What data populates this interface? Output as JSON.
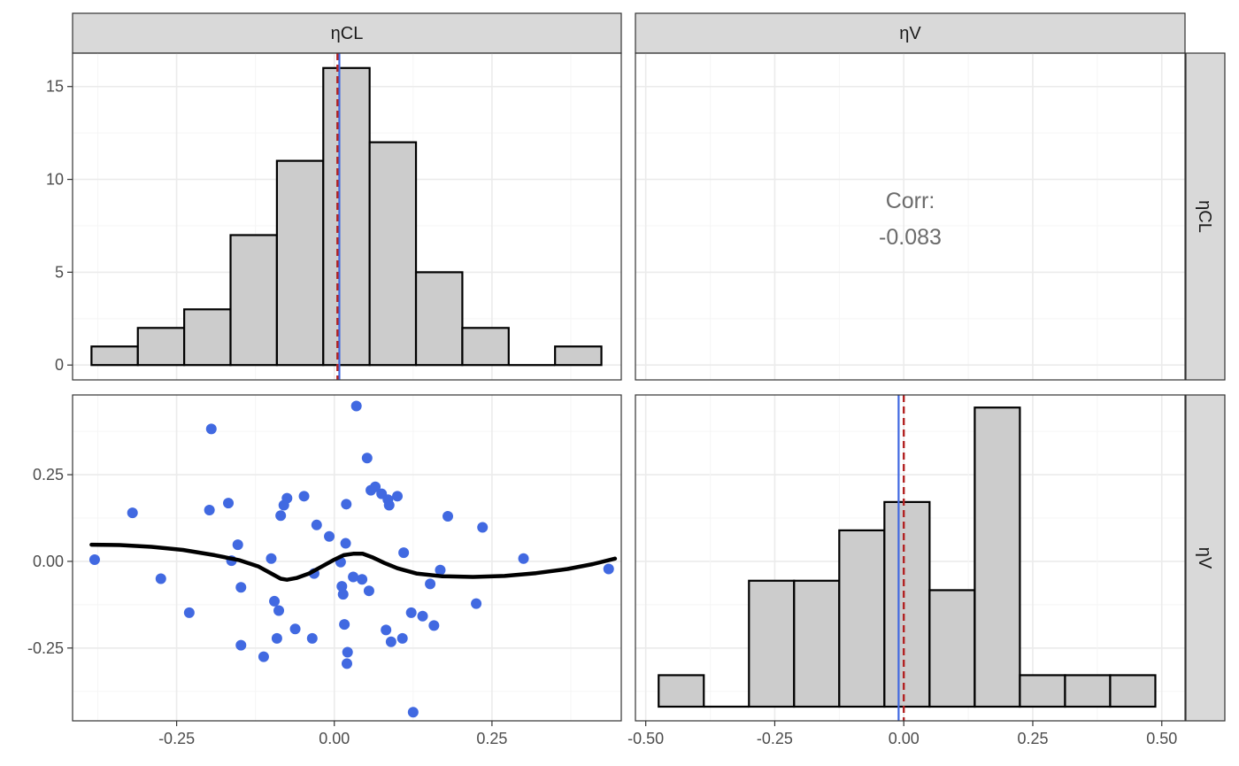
{
  "colors": {
    "bar_fill": "#cccccc",
    "bar_stroke": "#000000",
    "point": "#4169e1",
    "mean_line": "#4169e1",
    "median_line": "#b22222",
    "smooth": "#000000",
    "strip_fill": "#d9d9d9",
    "grid_major": "#ebebeb",
    "grid_minor": "#f5f5f5",
    "panel_border": "#333333",
    "corr_text": "#6b6b6b"
  },
  "chart_data": {
    "type": "pairs",
    "variables": [
      "ηCL",
      "ηV"
    ],
    "strips": {
      "columns": [
        "ηCL",
        "ηV"
      ],
      "rows": [
        "ηCL",
        "ηV"
      ]
    },
    "x_ticks": {
      "col1": [
        {
          "v": -0.25,
          "label": "-0.25"
        },
        {
          "v": 0.0,
          "label": "0.00"
        },
        {
          "v": 0.25,
          "label": "0.25"
        }
      ],
      "col2": [
        {
          "v": -0.5,
          "label": "-0.50"
        },
        {
          "v": -0.25,
          "label": "-0.25"
        },
        {
          "v": 0.0,
          "label": "0.00"
        },
        {
          "v": 0.25,
          "label": "0.25"
        },
        {
          "v": 0.5,
          "label": "0.50"
        }
      ]
    },
    "y_ticks": {
      "row1": [
        {
          "v": 0,
          "label": "0"
        },
        {
          "v": 5,
          "label": "5"
        },
        {
          "v": 10,
          "label": "10"
        },
        {
          "v": 15,
          "label": "15"
        }
      ],
      "row2": [
        {
          "v": -0.25,
          "label": "-0.25"
        },
        {
          "v": 0.0,
          "label": "0.00"
        },
        {
          "v": 0.25,
          "label": "0.25"
        }
      ]
    },
    "hist_etaCL": {
      "type": "bar",
      "xlim": [
        -0.415,
        0.455
      ],
      "ylim": [
        -0.8,
        16.8
      ],
      "bin_edges": [
        -0.385,
        -0.3115,
        -0.238,
        -0.1645,
        -0.091,
        -0.0175,
        0.056,
        0.1295,
        0.203,
        0.2765,
        0.35,
        0.4235
      ],
      "counts": [
        1,
        2,
        3,
        7,
        11,
        16,
        12,
        5,
        2,
        0,
        1
      ],
      "mean": 0.008,
      "median": 0.005
    },
    "corr": {
      "label": "Corr:",
      "value": "-0.083"
    },
    "scatter": {
      "type": "scatter",
      "xlim": [
        -0.415,
        0.455
      ],
      "ylim": [
        -0.46,
        0.48
      ],
      "points": [
        [
          -0.38,
          0.005
        ],
        [
          -0.32,
          0.14
        ],
        [
          -0.275,
          -0.05
        ],
        [
          -0.23,
          -0.148
        ],
        [
          -0.198,
          0.148
        ],
        [
          -0.195,
          0.382
        ],
        [
          -0.168,
          0.168
        ],
        [
          -0.163,
          0.002
        ],
        [
          -0.153,
          0.048
        ],
        [
          -0.148,
          -0.242
        ],
        [
          -0.148,
          -0.075
        ],
        [
          -0.112,
          -0.275
        ],
        [
          -0.1,
          0.008
        ],
        [
          -0.095,
          -0.115
        ],
        [
          -0.091,
          -0.222
        ],
        [
          -0.088,
          -0.142
        ],
        [
          -0.085,
          0.132
        ],
        [
          -0.08,
          0.162
        ],
        [
          -0.075,
          0.182
        ],
        [
          -0.062,
          -0.195
        ],
        [
          -0.048,
          0.188
        ],
        [
          -0.035,
          -0.222
        ],
        [
          -0.032,
          -0.035
        ],
        [
          -0.028,
          0.105
        ],
        [
          -0.008,
          0.072
        ],
        [
          0.01,
          -0.002
        ],
        [
          0.012,
          -0.072
        ],
        [
          0.014,
          -0.095
        ],
        [
          0.016,
          -0.182
        ],
        [
          0.018,
          0.052
        ],
        [
          0.019,
          0.165
        ],
        [
          0.02,
          -0.295
        ],
        [
          0.021,
          -0.262
        ],
        [
          0.03,
          -0.045
        ],
        [
          0.035,
          0.448
        ],
        [
          0.044,
          -0.052
        ],
        [
          0.052,
          0.298
        ],
        [
          0.055,
          -0.085
        ],
        [
          0.058,
          0.205
        ],
        [
          0.065,
          0.215
        ],
        [
          0.075,
          0.195
        ],
        [
          0.082,
          -0.198
        ],
        [
          0.085,
          0.178
        ],
        [
          0.087,
          0.162
        ],
        [
          0.09,
          -0.232
        ],
        [
          0.1,
          0.188
        ],
        [
          0.108,
          -0.222
        ],
        [
          0.11,
          0.025
        ],
        [
          0.122,
          -0.148
        ],
        [
          0.125,
          -0.435
        ],
        [
          0.14,
          -0.158
        ],
        [
          0.152,
          -0.065
        ],
        [
          0.158,
          -0.185
        ],
        [
          0.168,
          -0.025
        ],
        [
          0.18,
          0.13
        ],
        [
          0.225,
          -0.122
        ],
        [
          0.235,
          0.098
        ],
        [
          0.3,
          0.008
        ],
        [
          0.435,
          -0.022
        ]
      ],
      "smooth": [
        [
          -0.385,
          0.048
        ],
        [
          -0.34,
          0.047
        ],
        [
          -0.29,
          0.042
        ],
        [
          -0.24,
          0.033
        ],
        [
          -0.19,
          0.018
        ],
        [
          -0.15,
          0.003
        ],
        [
          -0.12,
          -0.015
        ],
        [
          -0.1,
          -0.035
        ],
        [
          -0.085,
          -0.05
        ],
        [
          -0.075,
          -0.053
        ],
        [
          -0.06,
          -0.048
        ],
        [
          -0.04,
          -0.035
        ],
        [
          -0.02,
          -0.015
        ],
        [
          0.0,
          0.005
        ],
        [
          0.015,
          0.018
        ],
        [
          0.03,
          0.022
        ],
        [
          0.045,
          0.022
        ],
        [
          0.06,
          0.012
        ],
        [
          0.08,
          -0.005
        ],
        [
          0.1,
          -0.02
        ],
        [
          0.13,
          -0.035
        ],
        [
          0.17,
          -0.043
        ],
        [
          0.22,
          -0.045
        ],
        [
          0.27,
          -0.042
        ],
        [
          0.32,
          -0.034
        ],
        [
          0.37,
          -0.022
        ],
        [
          0.41,
          -0.008
        ],
        [
          0.445,
          0.008
        ]
      ]
    },
    "hist_etaV": {
      "type": "bar",
      "xlim": [
        -0.52,
        0.545
      ],
      "ylim": [
        -0.45,
        9.9
      ],
      "bin_edges": [
        -0.475,
        -0.3875,
        -0.3,
        -0.2125,
        -0.125,
        -0.0375,
        0.05,
        0.1375,
        0.225,
        0.3125,
        0.4,
        0.4875
      ],
      "counts": [
        1,
        0,
        4,
        4,
        5.6,
        6.5,
        3.7,
        9.5,
        1,
        1,
        1
      ],
      "mean": -0.01,
      "median": 0.0
    }
  }
}
